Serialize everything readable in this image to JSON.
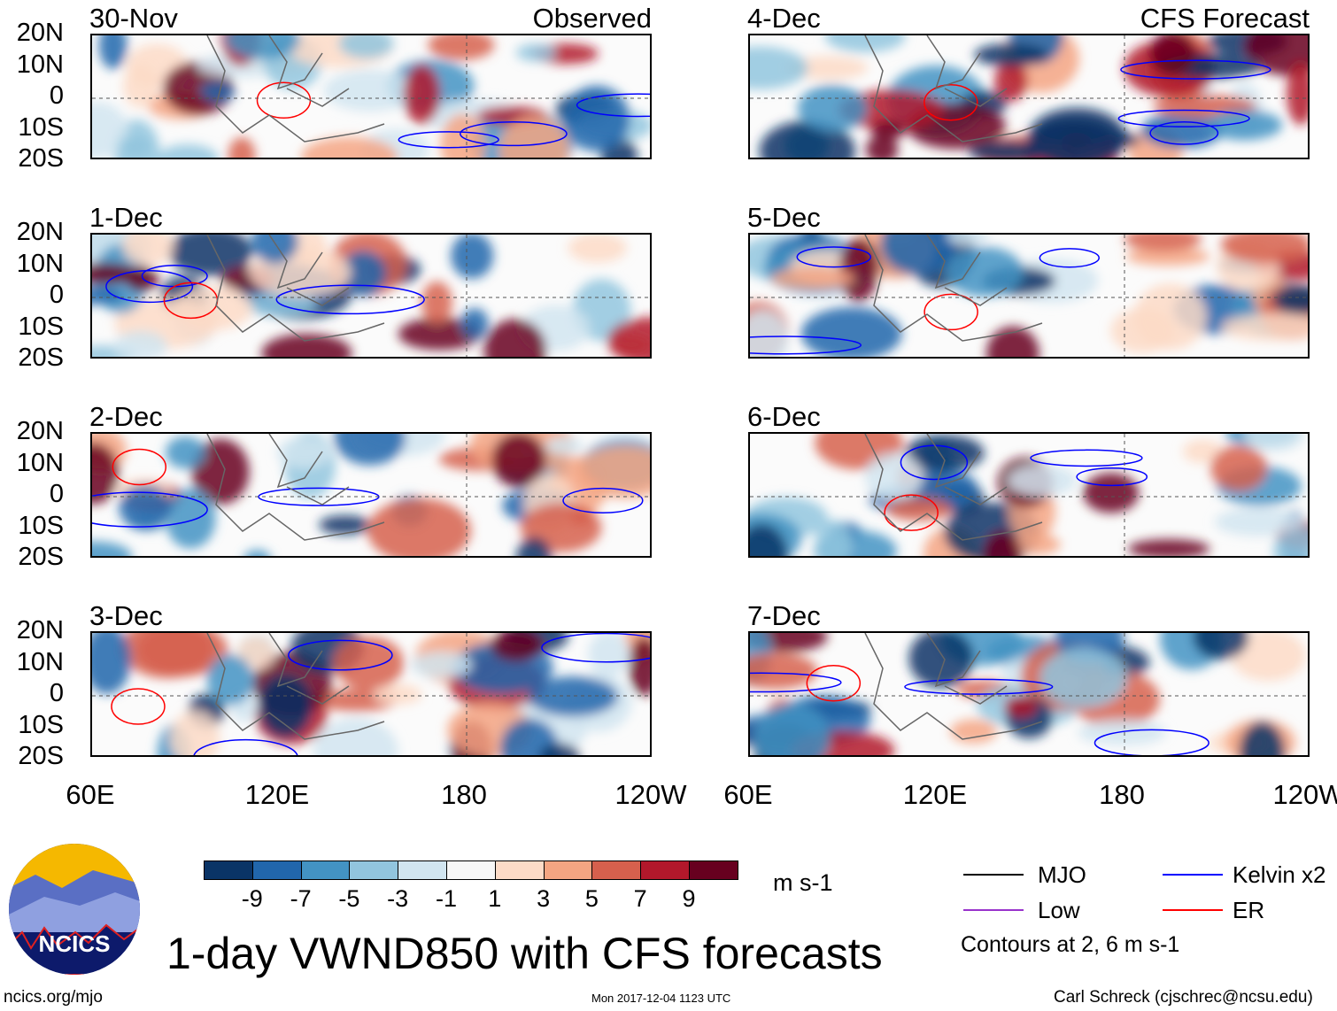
{
  "chart_data": {
    "type": "heatmap",
    "title": "1-day VWND850 with CFS forecasts",
    "column_titles": {
      "observed": "Observed",
      "forecast": "CFS Forecast"
    },
    "panels": [
      {
        "date": "30-Nov",
        "group": "observed"
      },
      {
        "date": "1-Dec",
        "group": "observed"
      },
      {
        "date": "2-Dec",
        "group": "observed"
      },
      {
        "date": "3-Dec",
        "group": "observed"
      },
      {
        "date": "4-Dec",
        "group": "forecast"
      },
      {
        "date": "5-Dec",
        "group": "forecast"
      },
      {
        "date": "6-Dec",
        "group": "forecast"
      },
      {
        "date": "7-Dec",
        "group": "forecast"
      }
    ],
    "lat_ticks": [
      "20N",
      "10N",
      "0",
      "10S",
      "20S"
    ],
    "lon_ticks": [
      "60E",
      "120E",
      "180",
      "120W"
    ],
    "colorbar": {
      "levels": [
        "-9",
        "-7",
        "-5",
        "-3",
        "-1",
        "1",
        "3",
        "5",
        "7",
        "9"
      ],
      "colors": [
        "#0a3466",
        "#2166ac",
        "#4393c3",
        "#92c5de",
        "#d1e5f0",
        "#f7f7f7",
        "#fddbc7",
        "#f4a582",
        "#d6604d",
        "#b2182b",
        "#67001f"
      ],
      "units": "m s-1"
    },
    "legend": [
      {
        "label": "MJO",
        "color": "#000000"
      },
      {
        "label": "Kelvin x2",
        "color": "#0000ff"
      },
      {
        "label": "Low",
        "color": "#9933cc"
      },
      {
        "label": "ER",
        "color": "#ff0000"
      }
    ],
    "contour_note": "Contours at 2, 6 m s-1"
  },
  "footer": {
    "logo_text": "NCICS",
    "url": "ncics.org/mjo",
    "timestamp": "Mon 2017-12-04 1123 UTC",
    "author": "Carl Schreck (cjschrec@ncsu.edu)"
  }
}
